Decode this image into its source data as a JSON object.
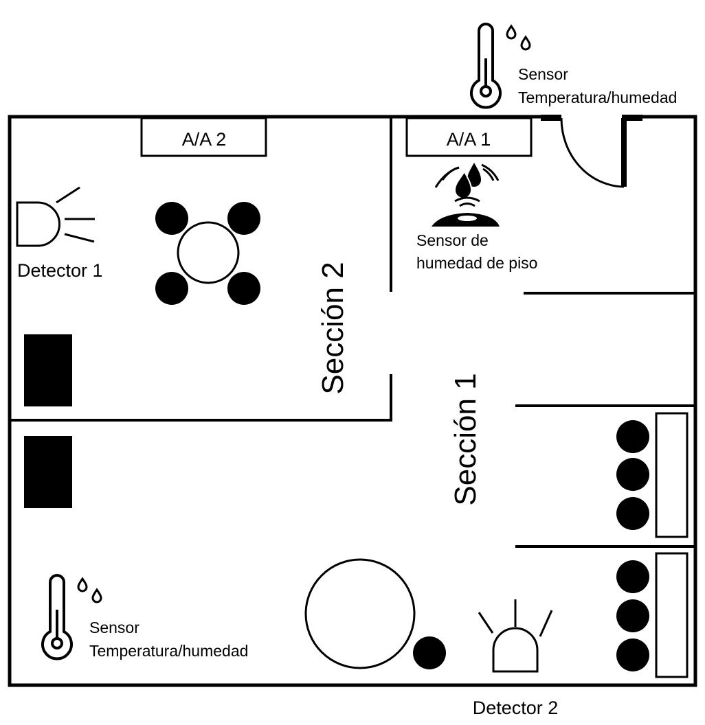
{
  "units": {
    "ac2": "A/A 2",
    "ac1": "A/A 1"
  },
  "sections": {
    "section2": "Sección 2",
    "section1": "Sección 1"
  },
  "devices": {
    "detector1": "Detector 1",
    "detector2": "Detector 2",
    "floor_sensor_line1": "Sensor de",
    "floor_sensor_line2": "humedad de piso",
    "temp_sensor_top_line1": "Sensor",
    "temp_sensor_top_line2": "Temperatura/humedad",
    "temp_sensor_bottom_line1": "Sensor",
    "temp_sensor_bottom_line2": "Temperatura/humedad"
  },
  "icons": [
    "thermometer-icon",
    "water-drops-icon",
    "floor-moisture-sensor-icon",
    "alarm-detector-icon"
  ],
  "colors": {
    "line": "#000000",
    "background": "#ffffff"
  }
}
